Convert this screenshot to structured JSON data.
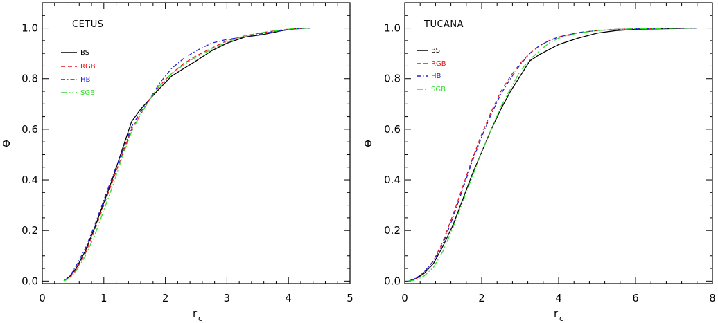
{
  "colors": {
    "BS": "#000000",
    "RGB": "#e8141c",
    "HB": "#1f23d6",
    "SGB": "#2fe02a"
  },
  "chart_data": [
    {
      "type": "line",
      "title": "CETUS",
      "xlabel": "r",
      "xlabel_sub": "c",
      "ylabel": "Φ",
      "xlim": [
        0,
        5
      ],
      "ylim": [
        -0.01,
        1.1
      ],
      "xticks": [
        0,
        1,
        2,
        3,
        4,
        5
      ],
      "xticklabels": [
        "0",
        "1",
        "2",
        "3",
        "4",
        "5"
      ],
      "yticks": [
        0.0,
        0.2,
        0.4,
        0.6,
        0.8,
        1.0
      ],
      "yticklabels": [
        "0.0",
        "0.2",
        "0.4",
        "0.6",
        "0.8",
        "1.0"
      ],
      "legend_position": "top-left",
      "series": [
        {
          "name": "BS",
          "dash": "solid",
          "x": [
            0.35,
            0.45,
            0.55,
            0.7,
            0.85,
            1.0,
            1.15,
            1.3,
            1.45,
            1.6,
            1.75,
            1.9,
            2.1,
            2.3,
            2.5,
            2.75,
            3.0,
            3.3,
            3.6,
            3.9,
            4.1,
            4.35
          ],
          "y": [
            0.0,
            0.02,
            0.05,
            0.12,
            0.21,
            0.31,
            0.41,
            0.52,
            0.63,
            0.68,
            0.72,
            0.76,
            0.81,
            0.84,
            0.87,
            0.91,
            0.94,
            0.965,
            0.975,
            0.99,
            0.997,
            1.0
          ]
        },
        {
          "name": "RGB",
          "dash": "6,4",
          "x": [
            0.35,
            0.45,
            0.55,
            0.7,
            0.85,
            1.0,
            1.15,
            1.3,
            1.45,
            1.6,
            1.75,
            1.9,
            2.1,
            2.3,
            2.5,
            2.75,
            3.0,
            3.3,
            3.6,
            3.9,
            4.1,
            4.35
          ],
          "y": [
            0.0,
            0.015,
            0.045,
            0.11,
            0.2,
            0.3,
            0.4,
            0.5,
            0.6,
            0.66,
            0.72,
            0.77,
            0.82,
            0.86,
            0.89,
            0.92,
            0.95,
            0.97,
            0.983,
            0.993,
            0.998,
            1.0
          ]
        },
        {
          "name": "HB",
          "dash": "6,3,1.5,3",
          "x": [
            0.35,
            0.45,
            0.55,
            0.7,
            0.85,
            1.0,
            1.15,
            1.3,
            1.45,
            1.6,
            1.75,
            1.9,
            2.1,
            2.3,
            2.5,
            2.75,
            3.0,
            3.3,
            3.6,
            3.9,
            4.1,
            4.35
          ],
          "y": [
            0.0,
            0.02,
            0.06,
            0.13,
            0.22,
            0.32,
            0.42,
            0.51,
            0.61,
            0.67,
            0.72,
            0.78,
            0.84,
            0.88,
            0.91,
            0.94,
            0.955,
            0.965,
            0.98,
            0.99,
            0.997,
            1.0
          ]
        },
        {
          "name": "SGB",
          "dash": "9,3,1.5,3,1.5,3",
          "x": [
            0.35,
            0.45,
            0.55,
            0.7,
            0.85,
            1.0,
            1.15,
            1.3,
            1.45,
            1.6,
            1.75,
            1.9,
            2.1,
            2.3,
            2.5,
            2.75,
            3.0,
            3.3,
            3.6,
            3.9,
            4.1,
            4.35
          ],
          "y": [
            0.0,
            0.012,
            0.04,
            0.1,
            0.18,
            0.28,
            0.38,
            0.49,
            0.59,
            0.66,
            0.72,
            0.77,
            0.82,
            0.855,
            0.885,
            0.915,
            0.945,
            0.97,
            0.983,
            0.993,
            0.998,
            1.0
          ]
        }
      ]
    },
    {
      "type": "line",
      "title": "TUCANA",
      "xlabel": "r",
      "xlabel_sub": "c",
      "ylabel": "Φ",
      "xlim": [
        0,
        8
      ],
      "ylim": [
        -0.01,
        1.1
      ],
      "xticks": [
        0,
        2,
        4,
        6,
        8
      ],
      "xticklabels": [
        "0",
        "2",
        "4",
        "6",
        "8"
      ],
      "yticks": [
        0.0,
        0.2,
        0.4,
        0.6,
        0.8,
        1.0
      ],
      "yticklabels": [
        "0.0",
        "0.2",
        "0.4",
        "0.6",
        "0.8",
        "1.0"
      ],
      "legend_position": "top-left",
      "series": [
        {
          "name": "BS",
          "dash": "solid",
          "x": [
            0.1,
            0.3,
            0.5,
            0.75,
            1.0,
            1.25,
            1.5,
            1.75,
            2.0,
            2.25,
            2.5,
            2.75,
            3.0,
            3.25,
            3.5,
            3.75,
            4.0,
            4.5,
            5.0,
            5.5,
            6.0,
            7.0,
            7.6
          ],
          "y": [
            0.0,
            0.01,
            0.03,
            0.07,
            0.14,
            0.22,
            0.32,
            0.42,
            0.51,
            0.6,
            0.68,
            0.75,
            0.81,
            0.87,
            0.895,
            0.915,
            0.935,
            0.96,
            0.98,
            0.99,
            0.995,
            0.998,
            1.0
          ]
        },
        {
          "name": "RGB",
          "dash": "6,4",
          "x": [
            0.1,
            0.3,
            0.5,
            0.75,
            1.0,
            1.25,
            1.5,
            1.75,
            2.0,
            2.25,
            2.5,
            2.75,
            3.0,
            3.25,
            3.5,
            3.75,
            4.0,
            4.5,
            5.0,
            5.5,
            6.0,
            7.0,
            7.6
          ],
          "y": [
            0.0,
            0.012,
            0.035,
            0.08,
            0.16,
            0.26,
            0.37,
            0.48,
            0.58,
            0.67,
            0.75,
            0.81,
            0.86,
            0.9,
            0.93,
            0.95,
            0.965,
            0.982,
            0.99,
            0.995,
            0.997,
            0.999,
            1.0
          ]
        },
        {
          "name": "HB",
          "dash": "6,3,1.5,3",
          "x": [
            0.1,
            0.3,
            0.5,
            0.75,
            1.0,
            1.25,
            1.5,
            1.75,
            2.0,
            2.25,
            2.5,
            2.75,
            3.0,
            3.25,
            3.5,
            3.75,
            4.0,
            4.5,
            5.0,
            5.5,
            6.0,
            7.0,
            7.6
          ],
          "y": [
            0.0,
            0.012,
            0.035,
            0.08,
            0.15,
            0.25,
            0.36,
            0.47,
            0.57,
            0.66,
            0.74,
            0.8,
            0.855,
            0.9,
            0.93,
            0.95,
            0.965,
            0.982,
            0.99,
            0.995,
            0.997,
            0.999,
            1.0
          ]
        },
        {
          "name": "SGB",
          "dash": "9,3,1.5,3,1.5,3",
          "x": [
            0.1,
            0.3,
            0.5,
            0.75,
            1.0,
            1.25,
            1.5,
            1.75,
            2.0,
            2.25,
            2.5,
            2.75,
            3.0,
            3.25,
            3.5,
            3.75,
            4.0,
            4.5,
            5.0,
            5.5,
            6.0,
            7.0,
            7.6
          ],
          "y": [
            0.0,
            0.005,
            0.02,
            0.055,
            0.12,
            0.21,
            0.31,
            0.41,
            0.51,
            0.6,
            0.69,
            0.76,
            0.83,
            0.875,
            0.91,
            0.94,
            0.96,
            0.98,
            0.99,
            0.995,
            0.997,
            0.999,
            1.0
          ]
        }
      ]
    }
  ]
}
